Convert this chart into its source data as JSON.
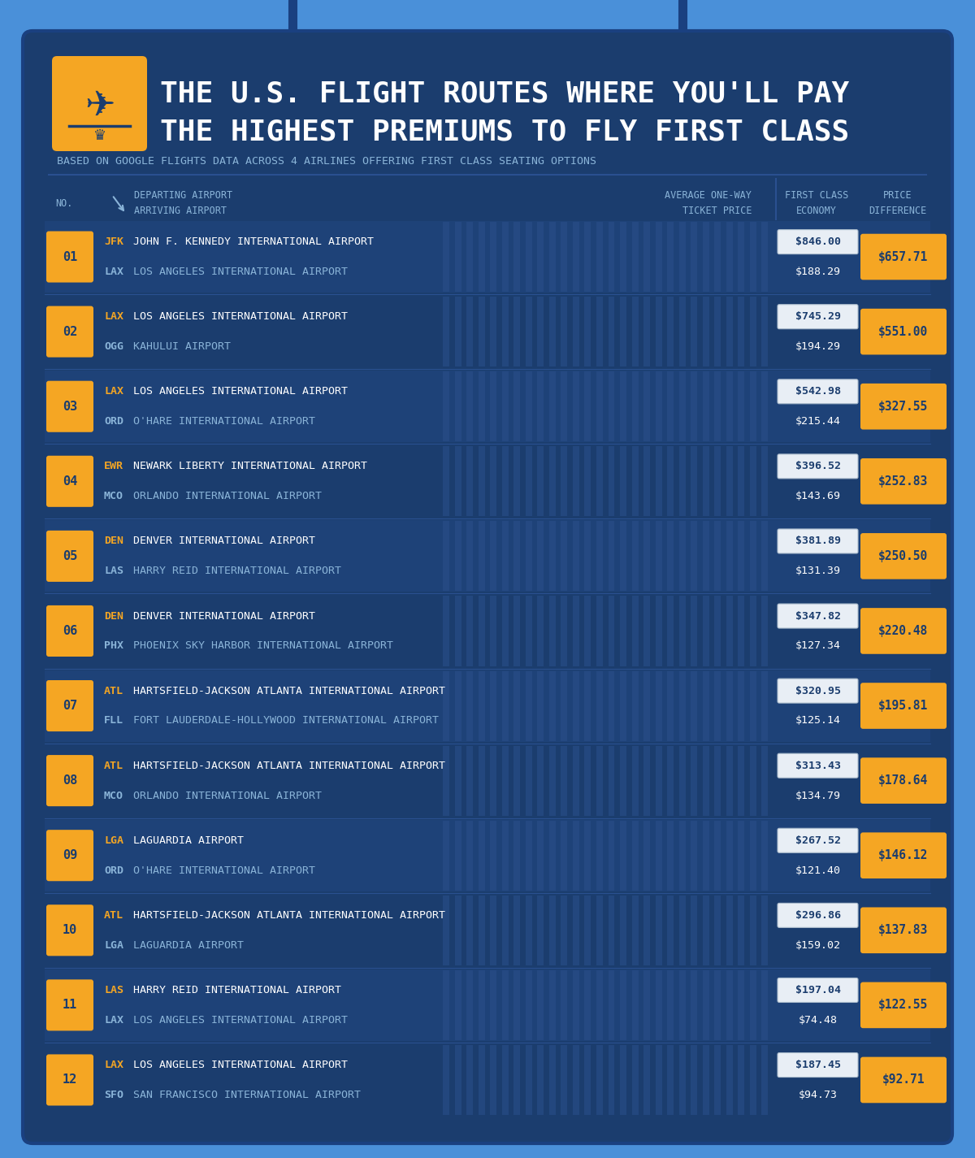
{
  "title_line1": "THE U.S. FLIGHT ROUTES WHERE YOU'LL PAY",
  "title_line2": "THE HIGHEST PREMIUMS TO FLY FIRST CLASS",
  "subtitle": "BASED ON GOOGLE FLIGHTS DATA ACROSS 4 AIRLINES OFFERING FIRST CLASS SEATING OPTIONS",
  "rows": [
    {
      "num": "01",
      "dep_code": "JFK",
      "dep_name": "JOHN F. KENNEDY INTERNATIONAL AIRPORT",
      "arr_code": "LAX",
      "arr_name": "LOS ANGELES INTERNATIONAL AIRPORT",
      "first_price": "$846.00",
      "economy_price": "$188.29",
      "diff": "$657.71"
    },
    {
      "num": "02",
      "dep_code": "LAX",
      "dep_name": "LOS ANGELES INTERNATIONAL AIRPORT",
      "arr_code": "OGG",
      "arr_name": "KAHULUI AIRPORT",
      "first_price": "$745.29",
      "economy_price": "$194.29",
      "diff": "$551.00"
    },
    {
      "num": "03",
      "dep_code": "LAX",
      "dep_name": "LOS ANGELES INTERNATIONAL AIRPORT",
      "arr_code": "ORD",
      "arr_name": "O'HARE INTERNATIONAL AIRPORT",
      "first_price": "$542.98",
      "economy_price": "$215.44",
      "diff": "$327.55"
    },
    {
      "num": "04",
      "dep_code": "EWR",
      "dep_name": "NEWARK LIBERTY INTERNATIONAL AIRPORT",
      "arr_code": "MCO",
      "arr_name": "ORLANDO INTERNATIONAL AIRPORT",
      "first_price": "$396.52",
      "economy_price": "$143.69",
      "diff": "$252.83"
    },
    {
      "num": "05",
      "dep_code": "DEN",
      "dep_name": "DENVER INTERNATIONAL AIRPORT",
      "arr_code": "LAS",
      "arr_name": "HARRY REID INTERNATIONAL AIRPORT",
      "first_price": "$381.89",
      "economy_price": "$131.39",
      "diff": "$250.50"
    },
    {
      "num": "06",
      "dep_code": "DEN",
      "dep_name": "DENVER INTERNATIONAL AIRPORT",
      "arr_code": "PHX",
      "arr_name": "PHOENIX SKY HARBOR INTERNATIONAL AIRPORT",
      "first_price": "$347.82",
      "economy_price": "$127.34",
      "diff": "$220.48"
    },
    {
      "num": "07",
      "dep_code": "ATL",
      "dep_name": "HARTSFIELD-JACKSON ATLANTA INTERNATIONAL AIRPORT",
      "arr_code": "FLL",
      "arr_name": "FORT LAUDERDALE-HOLLYWOOD INTERNATIONAL AIRPORT",
      "first_price": "$320.95",
      "economy_price": "$125.14",
      "diff": "$195.81"
    },
    {
      "num": "08",
      "dep_code": "ATL",
      "dep_name": "HARTSFIELD-JACKSON ATLANTA INTERNATIONAL AIRPORT",
      "arr_code": "MCO",
      "arr_name": "ORLANDO INTERNATIONAL AIRPORT",
      "first_price": "$313.43",
      "economy_price": "$134.79",
      "diff": "$178.64"
    },
    {
      "num": "09",
      "dep_code": "LGA",
      "dep_name": "LAGUARDIA AIRPORT",
      "arr_code": "ORD",
      "arr_name": "O'HARE INTERNATIONAL AIRPORT",
      "first_price": "$267.52",
      "economy_price": "$121.40",
      "diff": "$146.12"
    },
    {
      "num": "10",
      "dep_code": "ATL",
      "dep_name": "HARTSFIELD-JACKSON ATLANTA INTERNATIONAL AIRPORT",
      "arr_code": "LGA",
      "arr_name": "LAGUARDIA AIRPORT",
      "first_price": "$296.86",
      "economy_price": "$159.02",
      "diff": "$137.83"
    },
    {
      "num": "11",
      "dep_code": "LAS",
      "dep_name": "HARRY REID INTERNATIONAL AIRPORT",
      "arr_code": "LAX",
      "arr_name": "LOS ANGELES INTERNATIONAL AIRPORT",
      "first_price": "$197.04",
      "economy_price": "$74.48",
      "diff": "$122.55"
    },
    {
      "num": "12",
      "dep_code": "LAX",
      "dep_name": "LOS ANGELES INTERNATIONAL AIRPORT",
      "arr_code": "SFO",
      "arr_name": "SAN FRANCISCO INTERNATIONAL AIRPORT",
      "first_price": "$187.45",
      "economy_price": "$94.73",
      "diff": "$92.71"
    }
  ],
  "bg_outer": "#4a90d9",
  "bg_panel": "#1b3d6e",
  "color_orange": "#f5a623",
  "color_white": "#ffffff",
  "color_light_blue": "#8ab4d8",
  "color_dep_code": "#f5a623",
  "color_arr_code": "#8ab4d8",
  "color_diff_text": "#1b3d6e",
  "stripe_color": "#2a4f8a",
  "row_alt1": "#1e4278",
  "row_alt2": "#1b3d6e",
  "header_sep_color": "#2a5090"
}
